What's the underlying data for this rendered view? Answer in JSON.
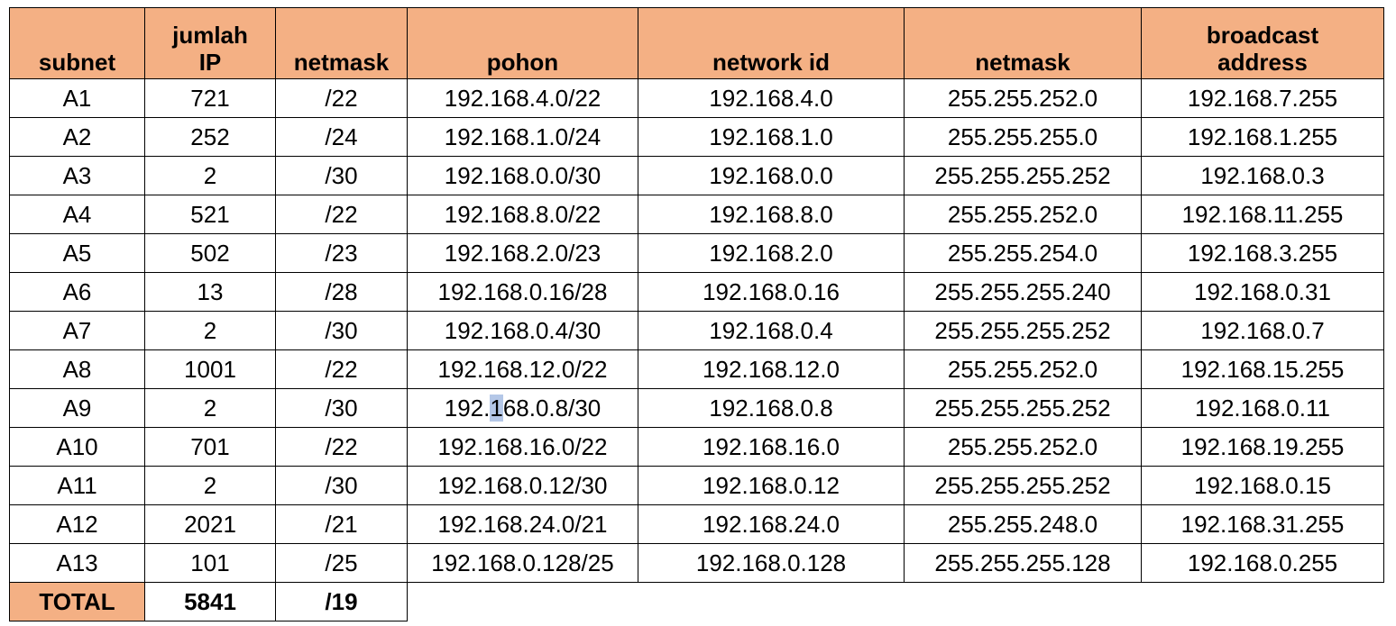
{
  "table": {
    "headers": [
      {
        "key": "subnet",
        "lines": [
          "subnet"
        ]
      },
      {
        "key": "jumlah_ip",
        "lines": [
          "jumlah",
          "IP"
        ]
      },
      {
        "key": "netmask_prefix",
        "lines": [
          "netmask"
        ]
      },
      {
        "key": "pohon",
        "lines": [
          "pohon"
        ]
      },
      {
        "key": "network_id",
        "lines": [
          "network id"
        ]
      },
      {
        "key": "netmask",
        "lines": [
          "netmask"
        ]
      },
      {
        "key": "broadcast_address",
        "lines": [
          "broadcast",
          "address"
        ]
      }
    ],
    "rows": [
      [
        "A1",
        "721",
        "/22",
        "192.168.4.0/22",
        "192.168.4.0",
        "255.255.252.0",
        "192.168.7.255"
      ],
      [
        "A2",
        "252",
        "/24",
        "192.168.1.0/24",
        "192.168.1.0",
        "255.255.255.0",
        "192.168.1.255"
      ],
      [
        "A3",
        "2",
        "/30",
        "192.168.0.0/30",
        "192.168.0.0",
        "255.255.255.252",
        "192.168.0.3"
      ],
      [
        "A4",
        "521",
        "/22",
        "192.168.8.0/22",
        "192.168.8.0",
        "255.255.252.0",
        "192.168.11.255"
      ],
      [
        "A5",
        "502",
        "/23",
        "192.168.2.0/23",
        "192.168.2.0",
        "255.255.254.0",
        "192.168.3.255"
      ],
      [
        "A6",
        "13",
        "/28",
        "192.168.0.16/28",
        "192.168.0.16",
        "255.255.255.240",
        "192.168.0.31"
      ],
      [
        "A7",
        "2",
        "/30",
        "192.168.0.4/30",
        "192.168.0.4",
        "255.255.255.252",
        "192.168.0.7"
      ],
      [
        "A8",
        "1001",
        "/22",
        "192.168.12.0/22",
        "192.168.12.0",
        "255.255.252.0",
        "192.168.15.255"
      ],
      [
        "A9",
        "2",
        "/30",
        "192.168.0.8/30",
        "192.168.0.8",
        "255.255.255.252",
        "192.168.0.11"
      ],
      [
        "A10",
        "701",
        "/22",
        "192.168.16.0/22",
        "192.168.16.0",
        "255.255.252.0",
        "192.168.19.255"
      ],
      [
        "A11",
        "2",
        "/30",
        "192.168.0.12/30",
        "192.168.0.12",
        "255.255.255.252",
        "192.168.0.15"
      ],
      [
        "A12",
        "2021",
        "/21",
        "192.168.24.0/21",
        "192.168.24.0",
        "255.255.248.0",
        "192.168.31.255"
      ],
      [
        "A13",
        "101",
        "/25",
        "192.168.0.128/25",
        "192.168.0.128",
        "255.255.255.128",
        "192.168.0.255"
      ]
    ],
    "total": {
      "label": "TOTAL",
      "jumlah_ip": "5841",
      "netmask_prefix": "/19"
    },
    "selection_highlight": {
      "row": 8,
      "col": 3,
      "char_index": 4,
      "color": "#b4c7e7"
    },
    "colors": {
      "header_fill": "#f4b084",
      "border": "#000000"
    }
  }
}
